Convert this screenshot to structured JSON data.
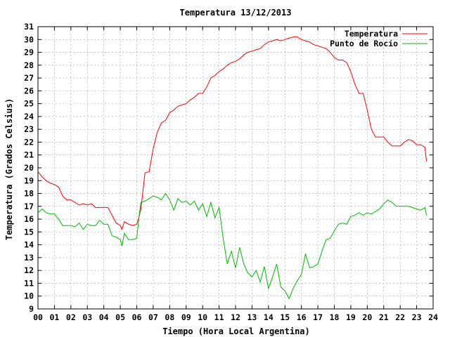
{
  "chart_data": {
    "type": "line",
    "title": "Temperatura 13/12/2013",
    "xlabel": "Tiempo (Hora Local Argentina)",
    "ylabel": "Temperatura (Grados Celsius)",
    "xlim": [
      0,
      24
    ],
    "ylim": [
      9,
      31
    ],
    "x_ticks": [
      {
        "value": 0,
        "label": "00"
      },
      {
        "value": 1,
        "label": "01"
      },
      {
        "value": 2,
        "label": "02"
      },
      {
        "value": 3,
        "label": "03"
      },
      {
        "value": 4,
        "label": "04"
      },
      {
        "value": 5,
        "label": "05"
      },
      {
        "value": 6,
        "label": "06"
      },
      {
        "value": 7,
        "label": "07"
      },
      {
        "value": 8,
        "label": "08"
      },
      {
        "value": 9,
        "label": "09"
      },
      {
        "value": 10,
        "label": "10"
      },
      {
        "value": 11,
        "label": "11"
      },
      {
        "value": 12,
        "label": "12"
      },
      {
        "value": 13,
        "label": "13"
      },
      {
        "value": 14,
        "label": "14"
      },
      {
        "value": 15,
        "label": "15"
      },
      {
        "value": 16,
        "label": "16"
      },
      {
        "value": 17,
        "label": "17"
      },
      {
        "value": 18,
        "label": "18"
      },
      {
        "value": 19,
        "label": "19"
      },
      {
        "value": 20,
        "label": "20"
      },
      {
        "value": 21,
        "label": "21"
      },
      {
        "value": 22,
        "label": "22"
      },
      {
        "value": 23,
        "label": "23"
      },
      {
        "value": 24,
        "label": "24"
      }
    ],
    "y_ticks": [
      9,
      10,
      11,
      12,
      13,
      14,
      15,
      16,
      17,
      18,
      19,
      20,
      21,
      22,
      23,
      24,
      25,
      26,
      27,
      28,
      29,
      30,
      31
    ],
    "grid": true,
    "legend_position": "top-right",
    "series": [
      {
        "name": "Temperatura",
        "color": "#ff0000",
        "x": [
          0,
          0.25,
          0.5,
          0.75,
          1,
          1.25,
          1.5,
          1.75,
          2,
          2.25,
          2.5,
          2.75,
          3,
          3.25,
          3.5,
          3.75,
          4,
          4.25,
          4.5,
          4.75,
          5,
          5.1,
          5.25,
          5.5,
          5.75,
          6,
          6.15,
          6.25,
          6.5,
          6.75,
          7,
          7.25,
          7.5,
          7.75,
          8,
          8.25,
          8.5,
          8.75,
          9,
          9.25,
          9.5,
          9.75,
          10,
          10.25,
          10.5,
          10.75,
          11,
          11.25,
          11.5,
          11.75,
          12,
          12.25,
          12.5,
          12.75,
          13,
          13.25,
          13.5,
          13.75,
          14,
          14.25,
          14.5,
          14.75,
          15,
          15.25,
          15.5,
          15.75,
          16,
          16.25,
          16.5,
          16.75,
          17,
          17.25,
          17.5,
          17.75,
          18,
          18.25,
          18.5,
          18.75,
          19,
          19.25,
          19.5,
          19.75,
          20,
          20.25,
          20.5,
          20.75,
          21,
          21.25,
          21.5,
          21.75,
          22,
          22.25,
          22.5,
          22.75,
          23,
          23.25,
          23.5,
          23.6
        ],
        "values": [
          19.7,
          19.3,
          19.0,
          18.8,
          18.7,
          18.5,
          17.8,
          17.5,
          17.5,
          17.3,
          17.1,
          17.2,
          17.1,
          17.2,
          16.9,
          16.9,
          16.9,
          16.9,
          16.3,
          15.7,
          15.5,
          15.2,
          15.8,
          15.6,
          15.5,
          15.6,
          16.2,
          16.8,
          19.6,
          19.7,
          21.5,
          22.8,
          23.5,
          23.7,
          24.3,
          24.5,
          24.8,
          24.9,
          25.0,
          25.3,
          25.5,
          25.8,
          25.8,
          26.3,
          27.0,
          27.2,
          27.5,
          27.7,
          28.0,
          28.2,
          28.3,
          28.5,
          28.8,
          29.0,
          29.1,
          29.2,
          29.3,
          29.6,
          29.8,
          29.9,
          30.0,
          29.9,
          30.0,
          30.1,
          30.2,
          30.2,
          30.0,
          29.9,
          29.8,
          29.6,
          29.5,
          29.4,
          29.3,
          29.0,
          28.6,
          28.4,
          28.4,
          28.2,
          27.5,
          26.5,
          25.8,
          25.8,
          24.5,
          23.0,
          22.4,
          22.4,
          22.4,
          22.0,
          21.7,
          21.7,
          21.7,
          22.0,
          22.2,
          22.1,
          21.8,
          21.8,
          21.6,
          20.5
        ]
      },
      {
        "name": "Punto de Rocío",
        "color": "#00bb00",
        "x": [
          0,
          0.25,
          0.5,
          0.75,
          1,
          1.25,
          1.5,
          1.75,
          2,
          2.25,
          2.5,
          2.75,
          3,
          3.25,
          3.5,
          3.75,
          4,
          4.25,
          4.5,
          4.75,
          5,
          5.1,
          5.25,
          5.5,
          5.75,
          6,
          6.15,
          6.25,
          6.5,
          6.75,
          7,
          7.25,
          7.5,
          7.75,
          8,
          8.25,
          8.5,
          8.75,
          9,
          9.25,
          9.5,
          9.75,
          10,
          10.25,
          10.5,
          10.75,
          11,
          11.25,
          11.5,
          11.75,
          12,
          12.25,
          12.5,
          12.75,
          13,
          13.25,
          13.5,
          13.75,
          14,
          14.25,
          14.5,
          14.75,
          15,
          15.25,
          15.5,
          15.75,
          16,
          16.25,
          16.5,
          16.75,
          17,
          17.25,
          17.5,
          17.75,
          18,
          18.25,
          18.5,
          18.75,
          19,
          19.25,
          19.5,
          19.75,
          20,
          20.25,
          20.5,
          20.75,
          21,
          21.25,
          21.5,
          21.75,
          22,
          22.25,
          22.5,
          22.75,
          23,
          23.25,
          23.5,
          23.6
        ],
        "values": [
          16.5,
          16.8,
          16.5,
          16.4,
          16.4,
          16.0,
          15.5,
          15.5,
          15.5,
          15.4,
          15.7,
          15.2,
          15.6,
          15.5,
          15.5,
          15.9,
          15.6,
          15.6,
          14.7,
          14.6,
          14.4,
          13.9,
          14.9,
          14.4,
          14.4,
          14.5,
          16.3,
          17.3,
          17.4,
          17.6,
          17.8,
          17.7,
          17.5,
          18.0,
          17.5,
          16.7,
          17.6,
          17.3,
          17.4,
          17.1,
          17.4,
          16.7,
          17.2,
          16.2,
          17.3,
          16.1,
          16.9,
          14.5,
          12.5,
          13.5,
          12.2,
          13.8,
          12.5,
          11.8,
          11.5,
          12.0,
          11.1,
          12.3,
          10.6,
          11.5,
          12.5,
          10.7,
          10.4,
          9.8,
          10.6,
          11.2,
          11.7,
          13.3,
          12.2,
          12.3,
          12.5,
          13.5,
          14.4,
          14.5,
          15.1,
          15.6,
          15.7,
          15.6,
          16.2,
          16.3,
          16.5,
          16.3,
          16.5,
          16.4,
          16.6,
          16.8,
          17.2,
          17.5,
          17.3,
          17.0,
          17.0,
          17.0,
          17.0,
          16.9,
          16.8,
          16.7,
          16.9,
          16.3
        ]
      }
    ]
  }
}
